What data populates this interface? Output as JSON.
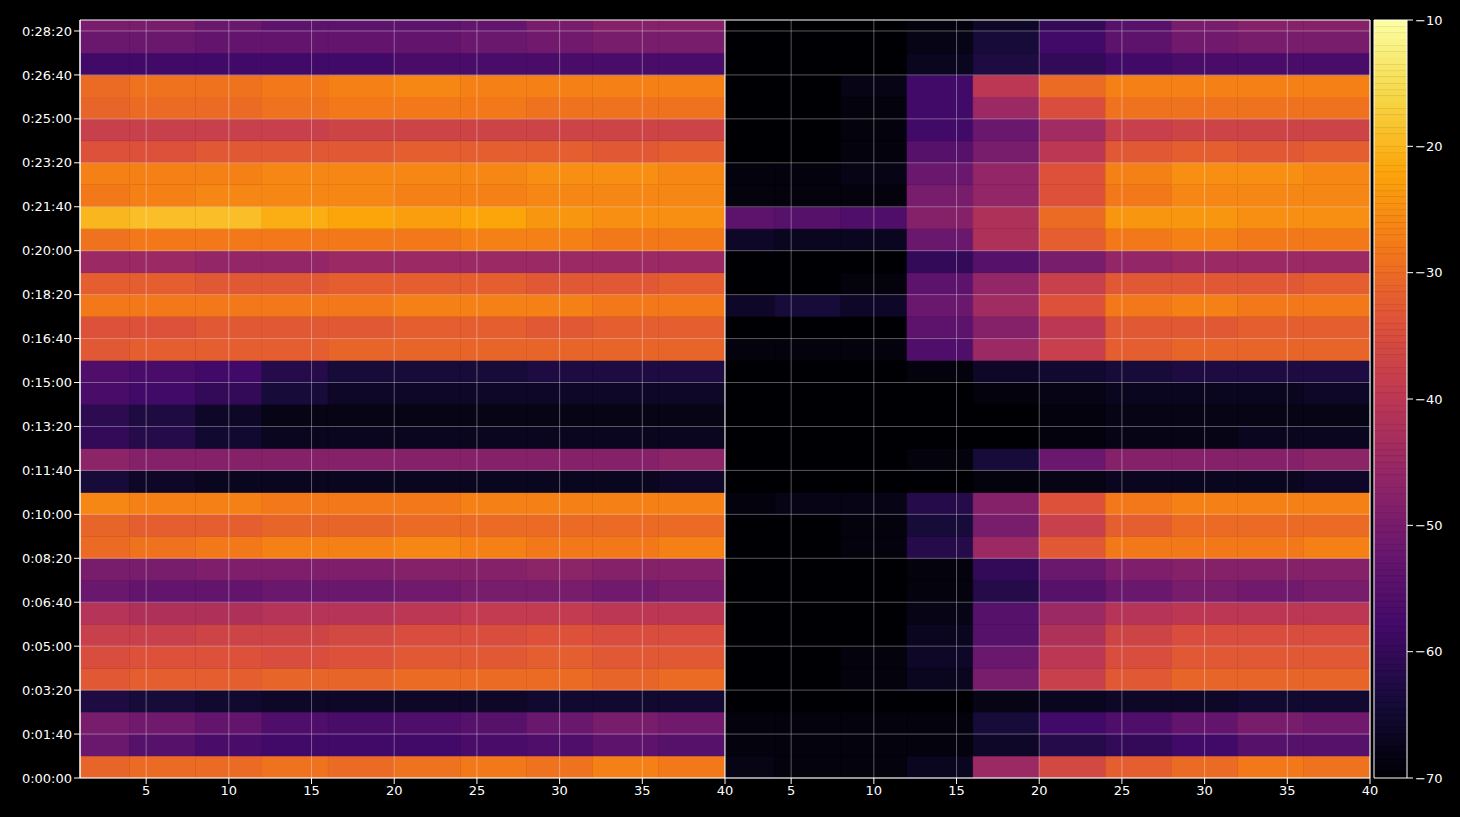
{
  "chart_data": [
    {
      "type": "heatmap",
      "x_edges": [
        1,
        4,
        8,
        12,
        16,
        20,
        24,
        28,
        32,
        36,
        40
      ],
      "y_edges": [
        0,
        50,
        100,
        150,
        200,
        250,
        300,
        350,
        400,
        450,
        500,
        550,
        600,
        650,
        700,
        750,
        800,
        850,
        900,
        950,
        1000,
        1050,
        1100,
        1150,
        1200,
        1250,
        1300,
        1350,
        1400,
        1450,
        1500,
        1550,
        1600,
        1650,
        1700,
        1725
      ],
      "xlim": [
        1,
        40
      ],
      "xticks": [
        5,
        10,
        15,
        20,
        25,
        30,
        35,
        40
      ],
      "ylim": [
        0,
        1725
      ],
      "yticks": [
        {
          "value": 0,
          "label": "0:00:00"
        },
        {
          "value": 100,
          "label": "0:01:40"
        },
        {
          "value": 200,
          "label": "0:03:20"
        },
        {
          "value": 300,
          "label": "0:05:00"
        },
        {
          "value": 400,
          "label": "0:06:40"
        },
        {
          "value": 500,
          "label": "0:08:20"
        },
        {
          "value": 600,
          "label": "0:10:00"
        },
        {
          "value": 700,
          "label": "0:11:40"
        },
        {
          "value": 800,
          "label": "0:13:20"
        },
        {
          "value": 900,
          "label": "0:15:00"
        },
        {
          "value": 1000,
          "label": "0:16:40"
        },
        {
          "value": 1100,
          "label": "0:18:20"
        },
        {
          "value": 1200,
          "label": "0:20:00"
        },
        {
          "value": 1300,
          "label": "0:21:40"
        },
        {
          "value": 1400,
          "label": "0:23:20"
        },
        {
          "value": 1500,
          "label": "0:25:00"
        },
        {
          "value": 1600,
          "label": "0:26:40"
        },
        {
          "value": 1700,
          "label": "0:28:20"
        }
      ],
      "grid": true,
      "z": [
        [
          -31,
          -30,
          -30,
          -29,
          -30,
          -29,
          -28,
          -29,
          -27,
          -28
        ],
        [
          -52,
          -55,
          -57,
          -58,
          -58,
          -58,
          -57,
          -56,
          -54,
          -55
        ],
        [
          -50,
          -51,
          -53,
          -56,
          -57,
          -56,
          -55,
          -52,
          -50,
          -51
        ],
        [
          -63,
          -64,
          -65,
          -66,
          -66,
          -66,
          -66,
          -65,
          -65,
          -65
        ],
        [
          -33,
          -32,
          -32,
          -31,
          -31,
          -30,
          -30,
          -30,
          -31,
          -30
        ],
        [
          -35,
          -34,
          -34,
          -35,
          -34,
          -33,
          -33,
          -32,
          -33,
          -33
        ],
        [
          -38,
          -38,
          -37,
          -37,
          -36,
          -35,
          -35,
          -34,
          -35,
          -35
        ],
        [
          -41,
          -42,
          -42,
          -41,
          -41,
          -40,
          -39,
          -39,
          -40,
          -40
        ],
        [
          -52,
          -53,
          -53,
          -52,
          -52,
          -51,
          -50,
          -50,
          -51,
          -50
        ],
        [
          -50,
          -50,
          -49,
          -49,
          -49,
          -48,
          -48,
          -47,
          -48,
          -48
        ],
        [
          -30,
          -29,
          -28,
          -27,
          -27,
          -26,
          -27,
          -28,
          -28,
          -27
        ],
        [
          -31,
          -32,
          -32,
          -31,
          -31,
          -30,
          -30,
          -30,
          -30,
          -30
        ],
        [
          -26,
          -27,
          -27,
          -28,
          -28,
          -28,
          -27,
          -27,
          -27,
          -27
        ],
        [
          -64,
          -66,
          -67,
          -67,
          -67,
          -67,
          -67,
          -67,
          -67,
          -66
        ],
        [
          -47,
          -48,
          -48,
          -48,
          -48,
          -48,
          -48,
          -48,
          -48,
          -47
        ],
        [
          -60,
          -62,
          -65,
          -67,
          -67,
          -67,
          -67,
          -67,
          -67,
          -67
        ],
        [
          -61,
          -63,
          -66,
          -68,
          -68,
          -68,
          -68,
          -68,
          -68,
          -68
        ],
        [
          -57,
          -58,
          -60,
          -64,
          -66,
          -66,
          -66,
          -66,
          -66,
          -66
        ],
        [
          -56,
          -57,
          -58,
          -62,
          -64,
          -64,
          -64,
          -63,
          -63,
          -63
        ],
        [
          -33,
          -32,
          -32,
          -32,
          -31,
          -31,
          -31,
          -31,
          -31,
          -31
        ],
        [
          -34,
          -34,
          -33,
          -33,
          -33,
          -32,
          -32,
          -33,
          -32,
          -32
        ],
        [
          -28,
          -28,
          -28,
          -28,
          -28,
          -27,
          -27,
          -27,
          -28,
          -28
        ],
        [
          -32,
          -32,
          -33,
          -33,
          -32,
          -32,
          -32,
          -33,
          -33,
          -32
        ],
        [
          -45,
          -45,
          -46,
          -46,
          -45,
          -45,
          -45,
          -45,
          -45,
          -45
        ],
        [
          -29,
          -28,
          -28,
          -28,
          -28,
          -28,
          -27,
          -27,
          -28,
          -28
        ],
        [
          -20,
          -19,
          -19,
          -21,
          -22,
          -23,
          -22,
          -24,
          -25,
          -25
        ],
        [
          -28,
          -27,
          -26,
          -26,
          -26,
          -27,
          -27,
          -26,
          -26,
          -26
        ],
        [
          -27,
          -27,
          -27,
          -26,
          -26,
          -26,
          -26,
          -25,
          -25,
          -26
        ],
        [
          -34,
          -34,
          -33,
          -33,
          -33,
          -32,
          -32,
          -32,
          -33,
          -32
        ],
        [
          -38,
          -38,
          -38,
          -38,
          -37,
          -37,
          -37,
          -37,
          -37,
          -37
        ],
        [
          -31,
          -30,
          -30,
          -29,
          -28,
          -28,
          -28,
          -29,
          -29,
          -29
        ],
        [
          -30,
          -29,
          -29,
          -28,
          -27,
          -26,
          -27,
          -27,
          -27,
          -27
        ],
        [
          -58,
          -58,
          -58,
          -58,
          -58,
          -57,
          -57,
          -57,
          -57,
          -57
        ],
        [
          -52,
          -52,
          -53,
          -53,
          -53,
          -53,
          -52,
          -51,
          -50,
          -50
        ],
        [
          -50,
          -50,
          -52,
          -54,
          -54,
          -54,
          -53,
          -50,
          -48,
          -48
        ]
      ]
    },
    {
      "type": "heatmap",
      "x_edges": [
        1,
        4,
        8,
        12,
        16,
        20,
        24,
        28,
        32,
        36,
        40
      ],
      "y_edges": [
        0,
        50,
        100,
        150,
        200,
        250,
        300,
        350,
        400,
        450,
        500,
        550,
        600,
        650,
        700,
        750,
        800,
        850,
        900,
        950,
        1000,
        1050,
        1100,
        1150,
        1200,
        1250,
        1300,
        1350,
        1400,
        1450,
        1500,
        1550,
        1600,
        1650,
        1700,
        1725
      ],
      "xlim": [
        1,
        40
      ],
      "xticks": [
        5,
        10,
        15,
        20,
        25,
        30,
        35,
        40
      ],
      "ylim": [
        0,
        1725
      ],
      "yticks": [
        0,
        100,
        200,
        300,
        400,
        500,
        600,
        700,
        800,
        900,
        1000,
        1100,
        1200,
        1300,
        1400,
        1500,
        1600,
        1700
      ],
      "tick_labels": "x",
      "grid": true,
      "z": [
        [
          -68,
          -69,
          -69,
          -67,
          -45,
          -36,
          -32,
          -30,
          -28,
          -29
        ],
        [
          -69,
          -69,
          -69,
          -69,
          -66,
          -62,
          -60,
          -58,
          -55,
          -55
        ],
        [
          -69,
          -69,
          -69,
          -69,
          -64,
          -58,
          -56,
          -53,
          -50,
          -51
        ],
        [
          -70,
          -70,
          -70,
          -70,
          -68,
          -67,
          -66,
          -66,
          -65,
          -65
        ],
        [
          -70,
          -70,
          -69,
          -67,
          -50,
          -38,
          -33,
          -31,
          -31,
          -31
        ],
        [
          -70,
          -70,
          -69,
          -66,
          -52,
          -40,
          -35,
          -33,
          -33,
          -33
        ],
        [
          -70,
          -70,
          -70,
          -67,
          -55,
          -42,
          -37,
          -35,
          -35,
          -35
        ],
        [
          -70,
          -70,
          -70,
          -68,
          -55,
          -45,
          -41,
          -40,
          -40,
          -40
        ],
        [
          -70,
          -70,
          -70,
          -69,
          -62,
          -55,
          -52,
          -50,
          -51,
          -50
        ],
        [
          -70,
          -70,
          -70,
          -69,
          -60,
          -52,
          -49,
          -48,
          -48,
          -48
        ],
        [
          -70,
          -70,
          -69,
          -62,
          -45,
          -33,
          -28,
          -28,
          -28,
          -27
        ],
        [
          -70,
          -70,
          -69,
          -64,
          -50,
          -38,
          -32,
          -30,
          -30,
          -30
        ],
        [
          -69,
          -68,
          -68,
          -62,
          -48,
          -34,
          -28,
          -27,
          -27,
          -27
        ],
        [
          -70,
          -70,
          -70,
          -70,
          -69,
          -68,
          -67,
          -67,
          -67,
          -66
        ],
        [
          -70,
          -70,
          -70,
          -69,
          -64,
          -52,
          -48,
          -48,
          -48,
          -47
        ],
        [
          -70,
          -70,
          -70,
          -70,
          -70,
          -69,
          -68,
          -68,
          -67,
          -67
        ],
        [
          -70,
          -70,
          -70,
          -70,
          -70,
          -69,
          -68,
          -68,
          -68,
          -68
        ],
        [
          -70,
          -70,
          -70,
          -70,
          -69,
          -68,
          -67,
          -67,
          -67,
          -66
        ],
        [
          -70,
          -70,
          -70,
          -69,
          -66,
          -65,
          -64,
          -63,
          -63,
          -63
        ],
        [
          -69,
          -69,
          -69,
          -56,
          -45,
          -38,
          -32,
          -31,
          -31,
          -31
        ],
        [
          -70,
          -70,
          -70,
          -54,
          -48,
          -40,
          -33,
          -33,
          -32,
          -32
        ],
        [
          -66,
          -64,
          -66,
          -52,
          -44,
          -34,
          -28,
          -27,
          -28,
          -28
        ],
        [
          -70,
          -70,
          -69,
          -54,
          -46,
          -38,
          -33,
          -33,
          -33,
          -32
        ],
        [
          -70,
          -70,
          -70,
          -60,
          -55,
          -50,
          -46,
          -45,
          -45,
          -45
        ],
        [
          -66,
          -67,
          -67,
          -52,
          -42,
          -32,
          -28,
          -27,
          -28,
          -28
        ],
        [
          -54,
          -55,
          -56,
          -48,
          -42,
          -30,
          -24,
          -24,
          -25,
          -25
        ],
        [
          -69,
          -69,
          -69,
          -50,
          -46,
          -34,
          -28,
          -26,
          -26,
          -26
        ],
        [
          -69,
          -69,
          -68,
          -52,
          -46,
          -34,
          -27,
          -25,
          -25,
          -26
        ],
        [
          -70,
          -70,
          -69,
          -55,
          -50,
          -40,
          -33,
          -32,
          -33,
          -32
        ],
        [
          -70,
          -70,
          -69,
          -58,
          -52,
          -44,
          -38,
          -37,
          -37,
          -37
        ],
        [
          -70,
          -70,
          -69,
          -58,
          -45,
          -35,
          -29,
          -29,
          -29,
          -29
        ],
        [
          -70,
          -70,
          -68,
          -58,
          -40,
          -30,
          -27,
          -27,
          -27,
          -27
        ],
        [
          -70,
          -70,
          -70,
          -67,
          -63,
          -60,
          -58,
          -57,
          -57,
          -57
        ],
        [
          -70,
          -70,
          -70,
          -68,
          -64,
          -58,
          -54,
          -51,
          -50,
          -50
        ],
        [
          -70,
          -70,
          -70,
          -69,
          -66,
          -60,
          -55,
          -50,
          -48,
          -48
        ]
      ],
      "colorbar": {
        "range": [
          -70,
          -10
        ],
        "ticks": [
          {
            "value": -70,
            "label": "−70"
          },
          {
            "value": -60,
            "label": "−60"
          },
          {
            "value": -50,
            "label": "−50"
          },
          {
            "value": -40,
            "label": "−40"
          },
          {
            "value": -30,
            "label": "−30"
          },
          {
            "value": -20,
            "label": "−20"
          },
          {
            "value": -10,
            "label": "−10"
          }
        ]
      }
    }
  ]
}
